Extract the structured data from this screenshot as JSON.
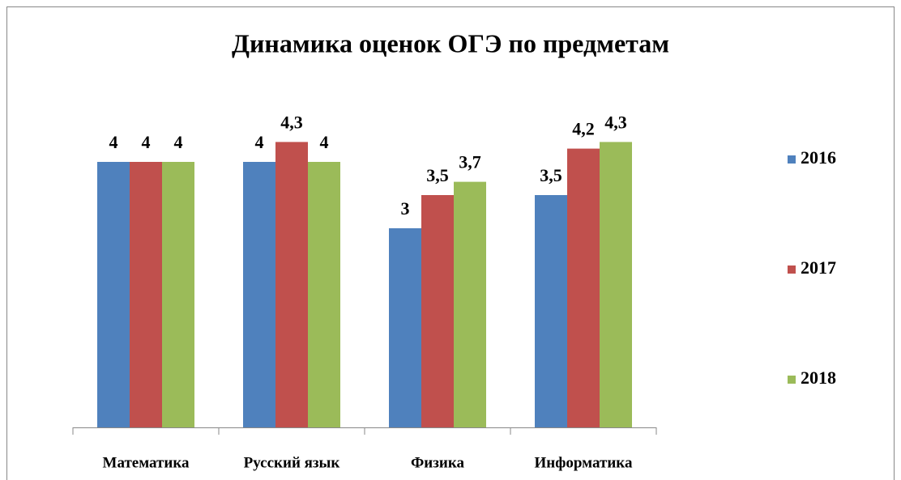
{
  "chart_data": {
    "type": "bar",
    "title": "Динамика оценок ОГЭ по предметам",
    "categories": [
      "Математика",
      "Русский язык",
      "Физика",
      "Информатика"
    ],
    "series": [
      {
        "name": "2016",
        "color": "#4f81bd",
        "values": [
          4,
          4,
          3,
          3.5
        ],
        "value_labels": [
          "4",
          "4",
          "3",
          "3,5"
        ]
      },
      {
        "name": "2017",
        "color": "#c0504d",
        "values": [
          4,
          4.3,
          3.5,
          4.2
        ],
        "value_labels": [
          "4",
          "4,3",
          "3,5",
          "4,2"
        ]
      },
      {
        "name": "2018",
        "color": "#9bbb59",
        "values": [
          4,
          4,
          3.7,
          4.3
        ],
        "value_labels": [
          "4",
          "4",
          "3,7",
          "4,3"
        ]
      }
    ],
    "ylim": [
      0,
      5
    ],
    "legend": "right"
  }
}
